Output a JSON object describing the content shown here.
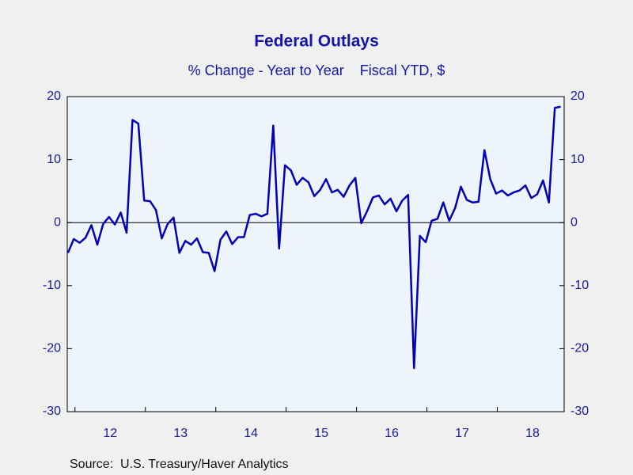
{
  "chart_data": {
    "type": "line",
    "title": "Federal Outlays",
    "subtitle": "% Change - Year to Year    Fiscal YTD, $",
    "source": "Source:  U.S. Treasury/Haver Analytics",
    "x": [
      2011.9,
      2011.983,
      2012.067,
      2012.15,
      2012.233,
      2012.317,
      2012.4,
      2012.483,
      2012.567,
      2012.65,
      2012.733,
      2012.817,
      2012.9,
      2012.983,
      2013.067,
      2013.15,
      2013.233,
      2013.317,
      2013.4,
      2013.483,
      2013.567,
      2013.65,
      2013.733,
      2013.817,
      2013.9,
      2013.983,
      2014.067,
      2014.15,
      2014.233,
      2014.317,
      2014.4,
      2014.483,
      2014.567,
      2014.65,
      2014.733,
      2014.817,
      2014.9,
      2014.983,
      2015.067,
      2015.15,
      2015.233,
      2015.317,
      2015.4,
      2015.483,
      2015.567,
      2015.65,
      2015.733,
      2015.817,
      2015.9,
      2015.983,
      2016.067,
      2016.15,
      2016.233,
      2016.317,
      2016.4,
      2016.483,
      2016.567,
      2016.65,
      2016.733,
      2016.817,
      2016.9,
      2016.983,
      2017.067,
      2017.15,
      2017.233,
      2017.317,
      2017.4,
      2017.483,
      2017.567,
      2017.65,
      2017.733,
      2017.817,
      2017.9,
      2017.983,
      2018.067,
      2018.15,
      2018.233,
      2018.317,
      2018.4,
      2018.483,
      2018.567,
      2018.65,
      2018.733,
      2018.817,
      2018.9
    ],
    "series": [
      {
        "name": "Federal Outlays",
        "color": "#0000b4",
        "values": [
          -4.8,
          -2.6,
          -3.2,
          -2.4,
          -0.4,
          -3.5,
          -0.2,
          0.9,
          -0.3,
          1.6,
          -1.6,
          16.3,
          15.7,
          3.5,
          3.4,
          2.0,
          -2.5,
          -0.2,
          0.8,
          -4.8,
          -2.9,
          -3.5,
          -2.5,
          -4.7,
          -4.8,
          -7.7,
          -2.7,
          -1.4,
          -3.4,
          -2.3,
          -2.3,
          1.2,
          1.4,
          1.0,
          1.4,
          15.4,
          -4.1,
          9.1,
          8.3,
          6.0,
          7.1,
          6.4,
          4.2,
          5.2,
          6.9,
          4.8,
          5.2,
          4.1,
          5.9,
          7.1,
          -0.1,
          1.8,
          4.0,
          4.3,
          2.9,
          3.8,
          1.8,
          3.5,
          4.4,
          -23.1,
          -2.1,
          -3.1,
          0.3,
          0.6,
          3.2,
          0.3,
          2.3,
          5.7,
          3.6,
          3.2,
          3.3,
          11.5,
          6.9,
          4.6,
          5.1,
          4.3,
          4.8,
          5.1,
          5.9,
          3.9,
          4.5,
          6.7,
          3.2,
          18.2,
          18.4
        ]
      }
    ],
    "xlim": [
      2011.89,
      2018.95
    ],
    "xticks": [
      {
        "value": 2012.5,
        "label": "12"
      },
      {
        "value": 2013.5,
        "label": "13"
      },
      {
        "value": 2014.5,
        "label": "14"
      },
      {
        "value": 2015.5,
        "label": "15"
      },
      {
        "value": 2016.5,
        "label": "16"
      },
      {
        "value": 2017.5,
        "label": "17"
      },
      {
        "value": 2018.5,
        "label": "18"
      }
    ],
    "xticks_minor": [
      2012,
      2013,
      2014,
      2015,
      2016,
      2017,
      2018
    ],
    "ylim": [
      -30,
      20
    ],
    "yticks": [
      -30,
      -20,
      -10,
      0,
      10,
      20
    ],
    "y2lim": [
      -30,
      20
    ],
    "y2ticks": [
      -30,
      -20,
      -10,
      0,
      10,
      20
    ],
    "zero_line": true
  }
}
